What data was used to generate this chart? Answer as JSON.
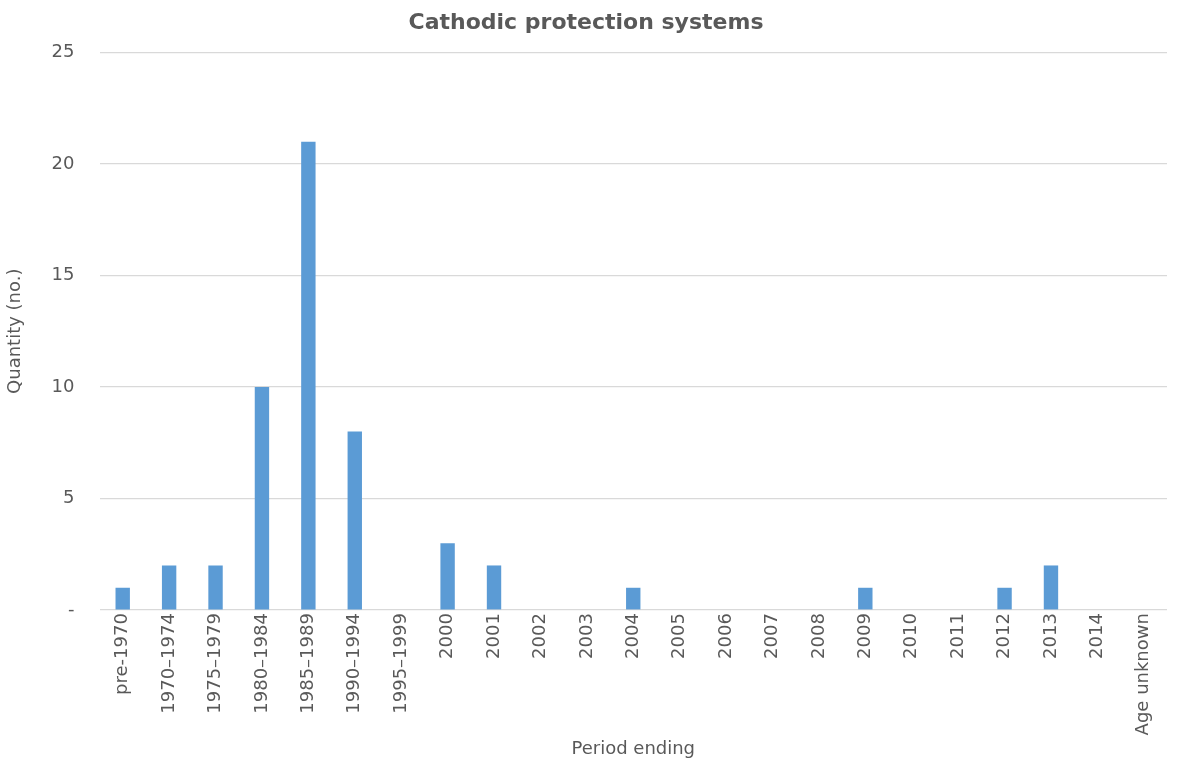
{
  "chart_data": {
    "type": "bar",
    "title": "Cathodic protection systems",
    "xlabel": "Period ending",
    "ylabel": "Quantity (no.)",
    "categories": [
      "pre-1970",
      "1970–1974",
      "1975–1979",
      "1980–1984",
      "1985–1989",
      "1990–1994",
      "1995–1999",
      "2000",
      "2001",
      "2002",
      "2003",
      "2004",
      "2005",
      "2006",
      "2007",
      "2008",
      "2009",
      "2010",
      "2011",
      "2012",
      "2013",
      "2014",
      "Age unknown"
    ],
    "values": [
      1,
      2,
      2,
      10,
      21,
      8,
      0,
      3,
      2,
      0,
      0,
      1,
      0,
      0,
      0,
      0,
      1,
      0,
      0,
      1,
      2,
      0,
      0
    ],
    "color": "#5b9bd5",
    "ylim": [
      0,
      25
    ],
    "yticks": [
      {
        "value": 0,
        "label": "-"
      },
      5,
      10,
      15,
      20,
      25
    ],
    "grid": "y",
    "legend": false
  }
}
